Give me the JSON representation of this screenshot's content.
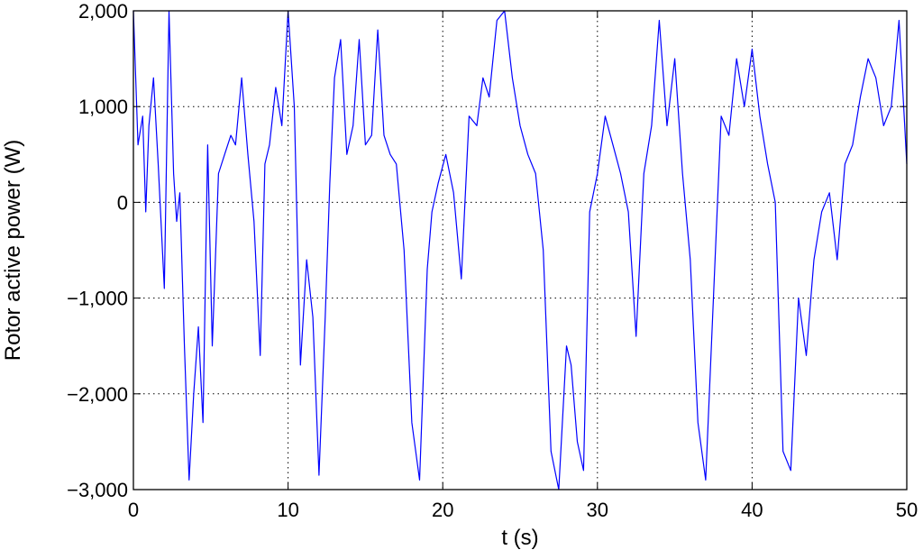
{
  "chart_data": {
    "type": "line",
    "xlabel": "t (s)",
    "ylabel": "Rotor active power (W)",
    "xlim": [
      0,
      50
    ],
    "ylim": [
      -3000,
      2000
    ],
    "grid": true,
    "grid_style": "dotted",
    "x_ticks": [
      0,
      10,
      20,
      30,
      40,
      50
    ],
    "x_tick_labels": [
      "0",
      "10",
      "20",
      "30",
      "40",
      "50"
    ],
    "y_ticks": [
      2000,
      1000,
      0,
      -1000,
      -2000,
      -3000
    ],
    "y_tick_labels": [
      "2,000",
      "1,000",
      "0",
      "−1,000",
      "−2,000",
      "−3,000"
    ],
    "series": [
      {
        "color": "#0000ff",
        "x": [
          0.0,
          0.3,
          0.6,
          0.8,
          1.0,
          1.3,
          1.6,
          2.0,
          2.3,
          2.6,
          2.8,
          3.0,
          3.3,
          3.6,
          3.9,
          4.2,
          4.5,
          4.8,
          5.1,
          5.5,
          5.9,
          6.3,
          6.6,
          7.0,
          7.4,
          7.8,
          8.2,
          8.5,
          8.8,
          9.2,
          9.6,
          10.0,
          10.4,
          10.8,
          11.2,
          11.6,
          12.0,
          12.4,
          12.7,
          13.0,
          13.4,
          13.8,
          14.2,
          14.6,
          15.0,
          15.4,
          15.8,
          16.2,
          16.6,
          17.0,
          17.5,
          18.0,
          18.5,
          19.0,
          19.3,
          19.7,
          20.2,
          20.7,
          21.2,
          21.7,
          22.2,
          22.6,
          23.0,
          23.5,
          24.0,
          24.5,
          25.0,
          25.5,
          26.0,
          26.5,
          27.0,
          27.5,
          28.0,
          28.3,
          28.7,
          29.1,
          29.5,
          30.0,
          30.5,
          31.0,
          31.5,
          32.0,
          32.5,
          33.0,
          33.5,
          34.0,
          34.5,
          35.0,
          35.5,
          36.0,
          36.5,
          37.0,
          37.5,
          38.0,
          38.5,
          39.0,
          39.5,
          40.0,
          40.5,
          41.0,
          41.5,
          42.0,
          42.5,
          43.0,
          43.5,
          44.0,
          44.5,
          45.0,
          45.5,
          46.0,
          46.5,
          47.0,
          47.5,
          48.0,
          48.5,
          49.0,
          49.5,
          50.0
        ],
        "y": [
          2000,
          600,
          900,
          -100,
          800,
          1300,
          400,
          -900,
          2000,
          300,
          -200,
          100,
          -1500,
          -2900,
          -2000,
          -1300,
          -2300,
          600,
          -1500,
          300,
          500,
          700,
          600,
          1300,
          500,
          -200,
          -1600,
          400,
          600,
          1200,
          800,
          2000,
          1000,
          -1700,
          -600,
          -1200,
          -2850,
          -1200,
          200,
          1300,
          1700,
          500,
          800,
          1700,
          600,
          700,
          1800,
          700,
          500,
          400,
          -500,
          -2300,
          -2900,
          -700,
          -100,
          200,
          500,
          100,
          -800,
          900,
          800,
          1300,
          1100,
          1900,
          2000,
          1300,
          800,
          500,
          300,
          -500,
          -2600,
          -3000,
          -1500,
          -1700,
          -2500,
          -2800,
          -100,
          300,
          900,
          600,
          300,
          -100,
          -1400,
          300,
          800,
          1900,
          800,
          1500,
          300,
          -600,
          -2300,
          -2900,
          -1000,
          900,
          700,
          1500,
          1000,
          1600,
          900,
          400,
          0,
          -2600,
          -2800,
          -1000,
          -1600,
          -600,
          -100,
          100,
          -600,
          400,
          600,
          1100,
          1500,
          1300,
          800,
          1000,
          1900,
          400
        ]
      }
    ]
  }
}
